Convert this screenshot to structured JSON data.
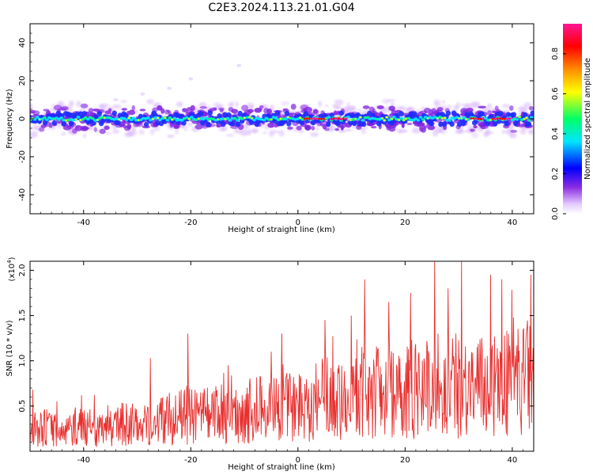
{
  "title": "C2E3.2024.113.21.01.G04",
  "chart_data": [
    {
      "type": "heatmap",
      "xlabel": "Height of straight line (km)",
      "ylabel": "Frequency (Hz)",
      "xlim": [
        -50,
        44
      ],
      "ylim": [
        -50,
        50
      ],
      "xticks": [
        -40,
        -20,
        0,
        20,
        40
      ],
      "yticks": [
        -40,
        -20,
        0,
        20,
        40
      ],
      "colorbar": {
        "label": "Normalized spectral amplitude",
        "range": [
          0,
          0.95
        ],
        "ticks": [
          0.0,
          0.2,
          0.4,
          0.6,
          0.8
        ],
        "colormap": [
          "#ffffff",
          "#e4ccff",
          "#8a2be2",
          "#0000ff",
          "#00e5ff",
          "#00ff66",
          "#ffff00",
          "#ff8c00",
          "#ff0000",
          "#ff1493"
        ]
      },
      "ridge": {
        "center_freq_hz": 0,
        "core_halfwidth_hz": 3,
        "spread_halfwidth_hz": 7,
        "high_amplitude_segments_km": [
          [
            1,
            5
          ],
          [
            6,
            9
          ],
          [
            32,
            35
          ],
          [
            36,
            40
          ]
        ]
      },
      "grid": false
    },
    {
      "type": "line",
      "xlabel": "Height of straight line (km)",
      "ylabel": "SNR (10 * v/v)",
      "y_multiplier": "(x10",
      "y_multiplier_exp": "4",
      "y_multiplier_close": ")",
      "xlim": [
        -50,
        44
      ],
      "ylim": [
        0,
        2.1
      ],
      "xticks": [
        -40,
        -20,
        0,
        20,
        40
      ],
      "yticks": [
        0.5,
        1.0,
        1.5,
        2.0
      ],
      "series": [
        {
          "color": "#e8302f",
          "x": [
            -50,
            -47,
            -44,
            -41,
            -38,
            -35,
            -32,
            -29,
            -26,
            -23,
            -20,
            -17,
            -14,
            -11,
            -8,
            -5,
            -2,
            1,
            4,
            7,
            10,
            13,
            16,
            19,
            22,
            25,
            28,
            31,
            34,
            37,
            40,
            43,
            44
          ],
          "y": [
            0.3,
            0.35,
            0.25,
            0.38,
            0.3,
            0.32,
            0.4,
            0.35,
            0.45,
            0.48,
            0.5,
            0.48,
            0.55,
            0.52,
            0.6,
            0.6,
            0.65,
            0.68,
            0.75,
            0.78,
            0.85,
            0.82,
            0.85,
            0.9,
            0.88,
            1.0,
            0.92,
            0.95,
            0.9,
            0.95,
            1.0,
            1.05,
            1.05
          ],
          "peaks": [
            [
              -49.5,
              0.68
            ],
            [
              -45,
              0.55
            ],
            [
              -38,
              0.62
            ],
            [
              -27.5,
              1.03
            ],
            [
              -20.5,
              1.3
            ],
            [
              -13,
              0.95
            ],
            [
              -5,
              1.1
            ],
            [
              -3,
              1.3
            ],
            [
              5,
              1.45
            ],
            [
              10,
              1.5
            ],
            [
              12.5,
              1.9
            ],
            [
              17,
              1.65
            ],
            [
              21,
              1.75
            ],
            [
              25.5,
              2.1
            ],
            [
              28,
              1.8
            ],
            [
              30.5,
              2.1
            ],
            [
              36,
              1.95
            ],
            [
              38,
              1.9
            ],
            [
              43.5,
              1.95
            ]
          ]
        }
      ]
    }
  ]
}
